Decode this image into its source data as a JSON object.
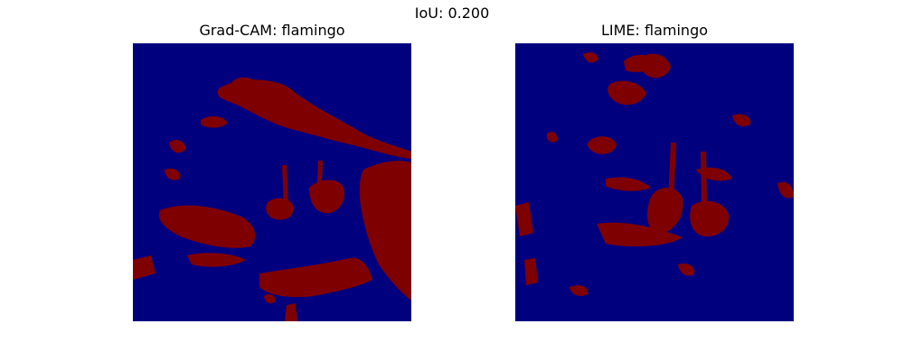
{
  "figure": {
    "suptitle": "IoU: 0.200"
  },
  "panels": [
    {
      "title": "Grad-CAM: flamingo",
      "mask_color": "#7f0000",
      "background_color": "#00007f"
    },
    {
      "title": "LIME: flamingo",
      "mask_color": "#7f0000",
      "background_color": "#00007f"
    }
  ]
}
